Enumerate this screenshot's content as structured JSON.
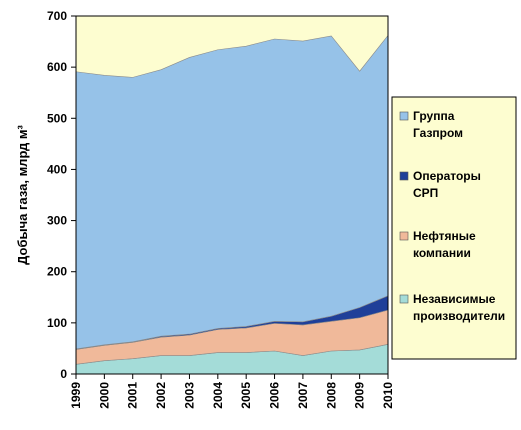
{
  "chart_data": {
    "type": "area",
    "stacked": true,
    "title": "",
    "xlabel": "",
    "ylabel": "Добыча газа, млрд м³",
    "ylim": [
      0,
      700
    ],
    "yticks": [
      0,
      100,
      200,
      300,
      400,
      500,
      600,
      700
    ],
    "x": [
      "1999",
      "2000",
      "2001",
      "2002",
      "2003",
      "2004",
      "2005",
      "2006",
      "2007",
      "2008",
      "2009",
      "2010"
    ],
    "grid": false,
    "legend_position": "right",
    "plot_background": "#fdfdd0",
    "series": [
      {
        "name": "Независимые производители",
        "color": "#a4dcd8",
        "values": [
          19,
          26,
          30,
          36,
          36,
          42,
          42,
          45,
          36,
          45,
          47,
          58
        ]
      },
      {
        "name": "Нефтяные компании",
        "color": "#f0b99a",
        "values": [
          29,
          30,
          32,
          36,
          40,
          45,
          48,
          54,
          60,
          58,
          63,
          67
        ]
      },
      {
        "name": "Операторы СРП",
        "color": "#1f3f99",
        "values": [
          1,
          1,
          1,
          2,
          2,
          2,
          3,
          4,
          6,
          10,
          20,
          28
        ]
      },
      {
        "name": "Группа Газпром",
        "color": "#96c2e8",
        "values": [
          542,
          527,
          517,
          521,
          541,
          545,
          548,
          552,
          549,
          548,
          462,
          509
        ]
      }
    ]
  }
}
